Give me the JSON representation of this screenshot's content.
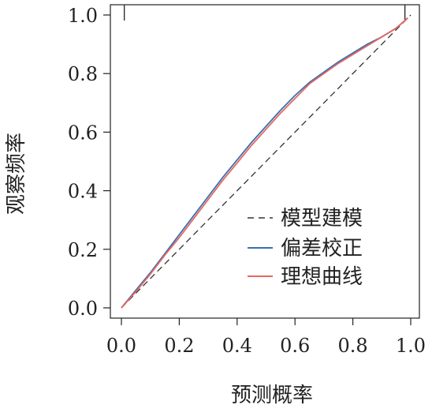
{
  "chart_data": {
    "type": "line",
    "xlabel": "预测概率",
    "ylabel": "观察频率",
    "xlim": [
      0,
      1
    ],
    "ylim": [
      0,
      1
    ],
    "x_ticks": [
      "0.0",
      "0.2",
      "0.4",
      "0.6",
      "0.8",
      "1.0"
    ],
    "y_ticks": [
      "0.0",
      "0.2",
      "0.4",
      "0.6",
      "0.8",
      "1.0"
    ],
    "grid": false,
    "legend": "center-right",
    "series": [
      {
        "name": "模型建模",
        "style": "dashed",
        "color": "#333333",
        "x": [
          0,
          1
        ],
        "y": [
          0,
          1
        ]
      },
      {
        "name": "偏差校正",
        "style": "solid",
        "color": "#3a6fb0",
        "x": [
          0.0,
          0.05,
          0.1,
          0.15,
          0.2,
          0.25,
          0.3,
          0.35,
          0.4,
          0.45,
          0.5,
          0.55,
          0.6,
          0.65,
          0.7,
          0.75,
          0.8,
          0.85,
          0.9,
          0.95,
          0.99
        ],
        "y": [
          0.0,
          0.06,
          0.12,
          0.185,
          0.25,
          0.315,
          0.38,
          0.445,
          0.505,
          0.565,
          0.62,
          0.675,
          0.725,
          0.77,
          0.805,
          0.84,
          0.87,
          0.9,
          0.925,
          0.955,
          0.99
        ]
      },
      {
        "name": "理想曲线",
        "style": "solid",
        "color": "#e8675f",
        "x": [
          0.0,
          0.05,
          0.1,
          0.15,
          0.2,
          0.25,
          0.3,
          0.35,
          0.4,
          0.45,
          0.5,
          0.55,
          0.6,
          0.65,
          0.7,
          0.75,
          0.8,
          0.85,
          0.9,
          0.95,
          0.99
        ],
        "y": [
          0.0,
          0.055,
          0.115,
          0.18,
          0.24,
          0.305,
          0.37,
          0.435,
          0.495,
          0.555,
          0.61,
          0.665,
          0.715,
          0.765,
          0.8,
          0.835,
          0.865,
          0.895,
          0.925,
          0.955,
          0.99
        ]
      }
    ],
    "rug_top_x": [
      0.01,
      0.98
    ]
  }
}
